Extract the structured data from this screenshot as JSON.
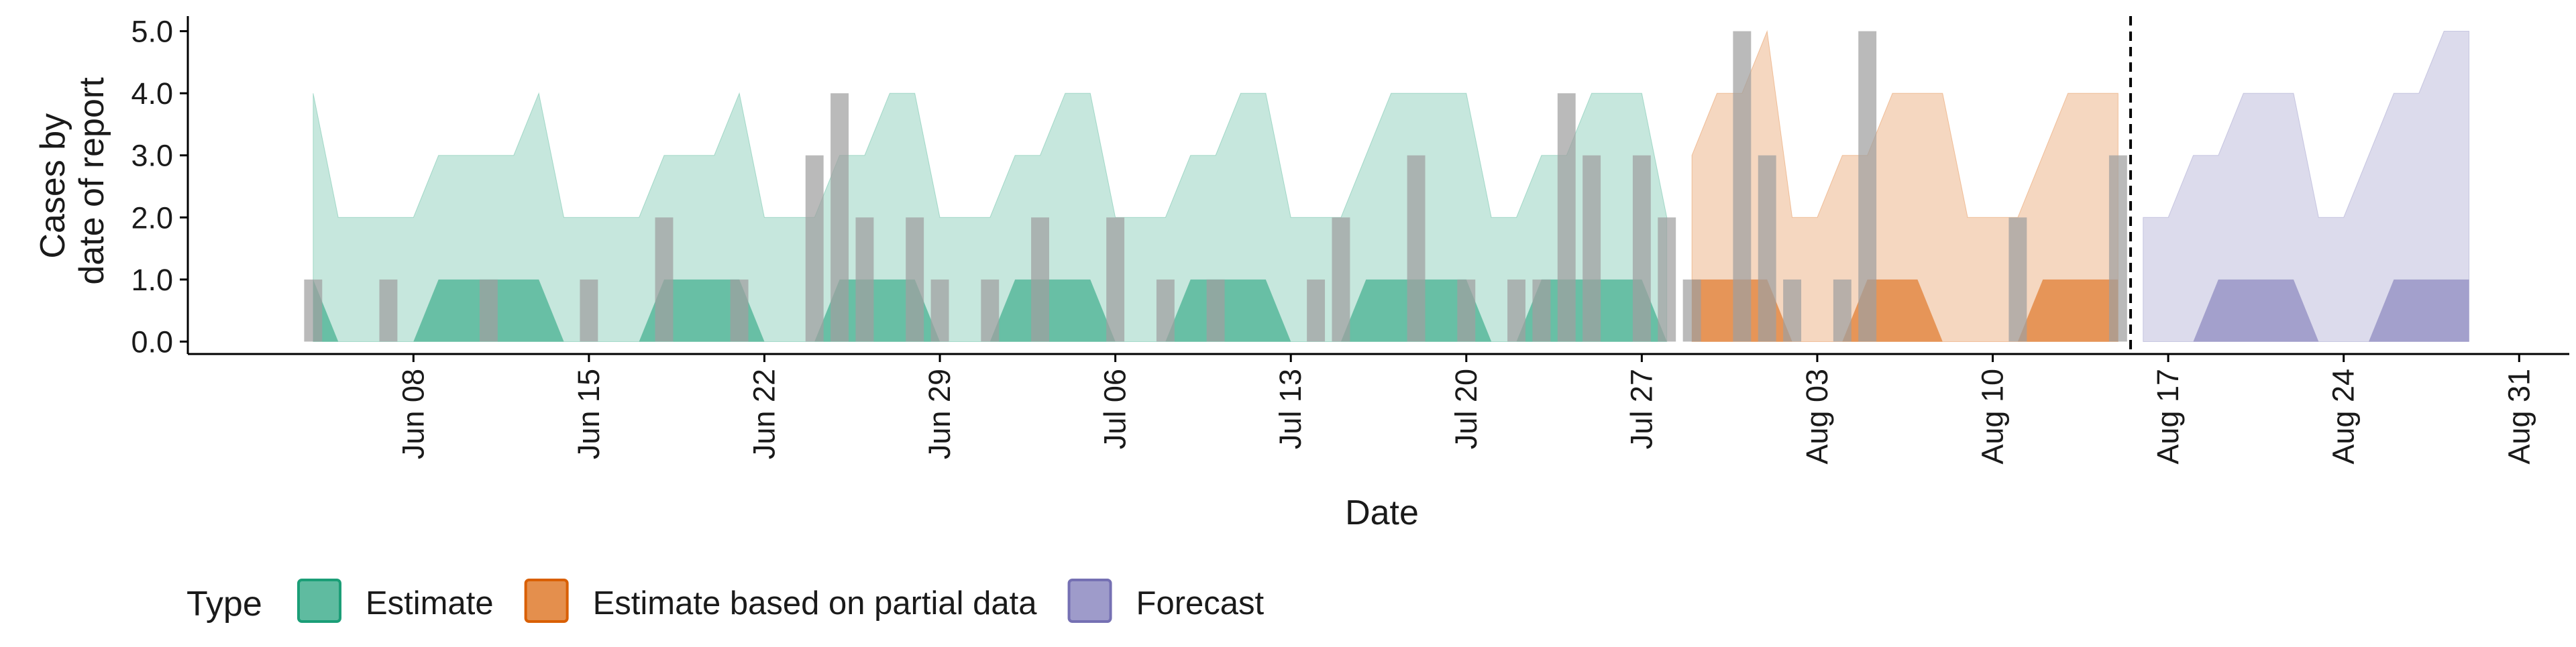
{
  "chart_data": {
    "type": "area",
    "xlabel": "Date",
    "ylabel": [
      "Cases by",
      "date of report"
    ],
    "ylim": [
      -0.2,
      5.2
    ],
    "y_ticks": [
      0.0,
      1.0,
      2.0,
      3.0,
      4.0,
      5.0
    ],
    "y_tick_labels": [
      "0.0",
      "1.0",
      "2.0",
      "3.0",
      "4.0",
      "5.0"
    ],
    "x_range": [
      "2020-05-30",
      "2020-09-02"
    ],
    "x_ticks": [
      "2020-06-08",
      "2020-06-15",
      "2020-06-22",
      "2020-06-29",
      "2020-07-06",
      "2020-07-13",
      "2020-07-20",
      "2020-07-27",
      "2020-08-03",
      "2020-08-10",
      "2020-08-17",
      "2020-08-24",
      "2020-08-31"
    ],
    "x_tick_labels": [
      "Jun 08",
      "Jun 15",
      "Jun 22",
      "Jun 29",
      "Jul 06",
      "Jul 13",
      "Jul 20",
      "Jul 27",
      "Aug 03",
      "Aug 10",
      "Aug 17",
      "Aug 24",
      "Aug 31"
    ],
    "forecast_date": "2020-08-15",
    "legend_title": "Type",
    "legend_position": "bottom",
    "grid": false,
    "colors": {
      "Estimate": "#1b9e77",
      "Estimate based on partial data": "#d95f02",
      "Forecast": "#7570b3",
      "observed": "#a0a0a0"
    },
    "observed_cases": {
      "dates": [
        "2020-06-04",
        "2020-06-07",
        "2020-06-11",
        "2020-06-15",
        "2020-06-18",
        "2020-06-21",
        "2020-06-24",
        "2020-06-25",
        "2020-06-26",
        "2020-06-28",
        "2020-06-29",
        "2020-07-01",
        "2020-07-03",
        "2020-07-06",
        "2020-07-08",
        "2020-07-10",
        "2020-07-14",
        "2020-07-15",
        "2020-07-18",
        "2020-07-20",
        "2020-07-22",
        "2020-07-23",
        "2020-07-24",
        "2020-07-25",
        "2020-07-27",
        "2020-07-28",
        "2020-07-29",
        "2020-07-31",
        "2020-08-01",
        "2020-08-02",
        "2020-08-04",
        "2020-08-05",
        "2020-08-11",
        "2020-08-15"
      ],
      "values": [
        1,
        1,
        1,
        1,
        2,
        1,
        3,
        4,
        2,
        2,
        1,
        1,
        2,
        2,
        1,
        1,
        1,
        2,
        3,
        1,
        1,
        1,
        4,
        3,
        3,
        2,
        1,
        5,
        3,
        1,
        1,
        5,
        2,
        3
      ]
    },
    "series": [
      {
        "name": "Estimate",
        "x": [
          "2020-06-04",
          "2020-06-05",
          "2020-06-06",
          "2020-06-07",
          "2020-06-08",
          "2020-06-09",
          "2020-06-10",
          "2020-06-11",
          "2020-06-12",
          "2020-06-13",
          "2020-06-14",
          "2020-06-15",
          "2020-06-16",
          "2020-06-17",
          "2020-06-18",
          "2020-06-19",
          "2020-06-20",
          "2020-06-21",
          "2020-06-22",
          "2020-06-23",
          "2020-06-24",
          "2020-06-25",
          "2020-06-26",
          "2020-06-27",
          "2020-06-28",
          "2020-06-29",
          "2020-06-30",
          "2020-07-01",
          "2020-07-02",
          "2020-07-03",
          "2020-07-04",
          "2020-07-05",
          "2020-07-06",
          "2020-07-07",
          "2020-07-08",
          "2020-07-09",
          "2020-07-10",
          "2020-07-11",
          "2020-07-12",
          "2020-07-13",
          "2020-07-14",
          "2020-07-15",
          "2020-07-16",
          "2020-07-17",
          "2020-07-18",
          "2020-07-19",
          "2020-07-20",
          "2020-07-21",
          "2020-07-22",
          "2020-07-23",
          "2020-07-24",
          "2020-07-25",
          "2020-07-26",
          "2020-07-27",
          "2020-07-28"
        ],
        "upper90": [
          4,
          2,
          2,
          2,
          2,
          3,
          3,
          3,
          3,
          4,
          2,
          2,
          2,
          2,
          3,
          3,
          3,
          4,
          2,
          2,
          2,
          3,
          3,
          4,
          4,
          2,
          2,
          2,
          3,
          3,
          4,
          4,
          2,
          2,
          2,
          3,
          3,
          4,
          4,
          2,
          2,
          2,
          3,
          4,
          4,
          4,
          4,
          2,
          2,
          3,
          3,
          4,
          4,
          4,
          2
        ],
        "upper50": [
          1,
          0,
          0,
          0,
          0,
          1,
          1,
          1,
          1,
          1,
          0,
          0,
          0,
          0,
          1,
          1,
          1,
          1,
          0,
          0,
          0,
          1,
          1,
          1,
          1,
          0,
          0,
          0,
          1,
          1,
          1,
          1,
          0,
          0,
          0,
          1,
          1,
          1,
          1,
          0,
          0,
          0,
          1,
          1,
          1,
          1,
          1,
          0,
          0,
          1,
          1,
          1,
          1,
          1,
          0
        ]
      },
      {
        "name": "Estimate based on partial data",
        "x": [
          "2020-07-29",
          "2020-07-30",
          "2020-07-31",
          "2020-08-01",
          "2020-08-02",
          "2020-08-03",
          "2020-08-04",
          "2020-08-05",
          "2020-08-06",
          "2020-08-07",
          "2020-08-08",
          "2020-08-09",
          "2020-08-10",
          "2020-08-11",
          "2020-08-12",
          "2020-08-13",
          "2020-08-14",
          "2020-08-15"
        ],
        "upper90": [
          3,
          4,
          4,
          5,
          2,
          2,
          3,
          3,
          4,
          4,
          4,
          2,
          2,
          2,
          3,
          4,
          4,
          4
        ],
        "upper50": [
          1,
          1,
          1,
          1,
          0,
          0,
          0,
          1,
          1,
          1,
          0,
          0,
          0,
          0,
          1,
          1,
          1,
          1
        ]
      },
      {
        "name": "Forecast",
        "x": [
          "2020-08-16",
          "2020-08-17",
          "2020-08-18",
          "2020-08-19",
          "2020-08-20",
          "2020-08-21",
          "2020-08-22",
          "2020-08-23",
          "2020-08-24",
          "2020-08-25",
          "2020-08-26",
          "2020-08-27",
          "2020-08-28",
          "2020-08-29"
        ],
        "upper90": [
          2,
          2,
          3,
          3,
          4,
          4,
          4,
          2,
          2,
          3,
          4,
          4,
          5,
          5
        ],
        "upper50": [
          0,
          0,
          0,
          1,
          1,
          1,
          1,
          0,
          0,
          0,
          1,
          1,
          1,
          1
        ]
      }
    ]
  }
}
